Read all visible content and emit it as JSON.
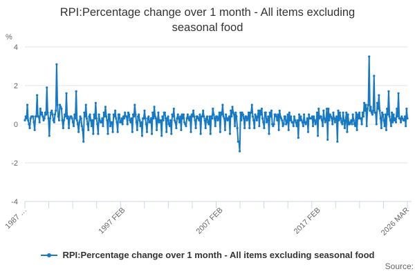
{
  "title": {
    "line1": "RPI:Percentage change over 1 month - All items excluding",
    "line2": "seasonal food"
  },
  "legend": {
    "label": "RPI:Percentage change over 1 month - All items excluding seasonal food"
  },
  "footer": {
    "source_label": "Source:"
  },
  "chart_data": {
    "type": "line",
    "title": "RPI:Percentage change over 1 month - All items excluding seasonal food",
    "ylabel": "%",
    "xlabel": "",
    "ylim": [
      -4,
      4
    ],
    "yticks": [
      4,
      2,
      0,
      -2,
      -4
    ],
    "grid": true,
    "legend_position": "bottom",
    "x_start": "1987 JAN",
    "x_end": "2026 MAR",
    "x_frequency": "monthly",
    "x_tick_labels": [
      {
        "label": "1987 …",
        "month_index": 0
      },
      {
        "label": "1997 FEB",
        "month_index": 121
      },
      {
        "label": "2007 FEB",
        "month_index": 241
      },
      {
        "label": "2017 FEB",
        "month_index": 361
      },
      {
        "label": "2026 MAR",
        "month_index": 470
      }
    ],
    "minor_x_tick_count": 17,
    "series": [
      {
        "name": "RPI:Percentage change over 1 month - All items excluding seasonal food",
        "color": "#1779c4",
        "values": [
          0.2,
          0.4,
          0.3,
          1.0,
          0.2,
          0.0,
          -0.2,
          0.3,
          0.4,
          0.4,
          0.4,
          0.1,
          -0.3,
          0.4,
          0.4,
          1.5,
          0.4,
          0.4,
          0.1,
          0.8,
          0.5,
          0.6,
          0.4,
          0.2,
          0.3,
          0.6,
          0.5,
          1.9,
          0.6,
          0.3,
          -0.6,
          0.3,
          0.6,
          0.7,
          0.5,
          0.2,
          0.1,
          0.5,
          0.7,
          3.1,
          1.0,
          0.4,
          0.2,
          1.0,
          0.9,
          0.8,
          0.2,
          -0.2,
          0.2,
          0.5,
          0.4,
          1.6,
          0.3,
          0.4,
          -0.2,
          0.3,
          0.4,
          0.4,
          0.3,
          0.1,
          -0.1,
          0.5,
          0.3,
          1.7,
          0.2,
          0.0,
          -0.4,
          0.1,
          0.4,
          0.3,
          -0.1,
          -0.3,
          -0.9,
          0.6,
          0.4,
          1.0,
          0.3,
          0.0,
          -0.3,
          0.4,
          0.5,
          0.2,
          -0.1,
          0.2,
          -0.5,
          0.5,
          0.3,
          1.1,
          0.3,
          0.0,
          -0.5,
          0.5,
          0.2,
          0.1,
          0.1,
          0.3,
          -0.1,
          0.6,
          0.4,
          0.9,
          0.4,
          0.2,
          -0.5,
          0.5,
          0.5,
          -0.1,
          0.1,
          0.1,
          -0.4,
          0.5,
          0.4,
          0.7,
          0.3,
          0.1,
          -0.4,
          0.5,
          0.5,
          0.1,
          0.1,
          0.3,
          0.0,
          0.4,
          0.3,
          0.6,
          0.4,
          0.4,
          0.0,
          0.6,
          0.5,
          0.2,
          0.1,
          0.3,
          -0.4,
          0.5,
          0.4,
          1.0,
          0.5,
          0.1,
          -0.3,
          0.4,
          0.5,
          0.2,
          -0.1,
          0.1,
          -0.6,
          0.3,
          0.3,
          0.7,
          0.3,
          0.0,
          -0.4,
          0.3,
          0.4,
          0.1,
          0.1,
          0.3,
          -0.5,
          0.6,
          0.3,
          0.9,
          0.4,
          0.3,
          -0.3,
          0.2,
          0.6,
          0.1,
          0.2,
          0.2,
          -0.6,
          0.4,
          0.2,
          0.6,
          0.6,
          0.3,
          -0.4,
          0.3,
          0.4,
          0.0,
          -0.1,
          0.2,
          -0.5,
          0.5,
          0.4,
          0.8,
          0.2,
          0.1,
          -0.2,
          0.3,
          0.5,
          0.3,
          0.1,
          0.4,
          -0.3,
          0.5,
          0.3,
          0.5,
          0.1,
          0.0,
          -0.1,
          0.3,
          0.5,
          0.3,
          0.2,
          0.4,
          -0.4,
          0.5,
          0.4,
          0.7,
          0.4,
          0.2,
          -0.2,
          0.4,
          0.4,
          0.3,
          0.2,
          0.5,
          -0.5,
          0.4,
          0.4,
          0.7,
          0.4,
          0.2,
          -0.2,
          0.3,
          0.4,
          0.1,
          0.0,
          0.4,
          -0.5,
          0.4,
          0.3,
          0.8,
          0.5,
          0.3,
          -0.1,
          0.4,
          0.4,
          0.2,
          0.3,
          0.6,
          -0.4,
          0.6,
          0.5,
          1.0,
          0.4,
          0.3,
          -0.3,
          0.5,
          0.3,
          0.2,
          0.3,
          0.4,
          -0.5,
          0.7,
          0.4,
          0.9,
          0.6,
          0.5,
          -0.1,
          0.6,
          0.4,
          -0.2,
          -0.9,
          -0.9,
          -1.4,
          0.6,
          0.2,
          0.6,
          0.5,
          0.3,
          -0.2,
          0.4,
          0.4,
          0.2,
          0.3,
          0.6,
          -0.2,
          0.6,
          0.6,
          1.0,
          0.4,
          0.2,
          -0.2,
          0.5,
          0.4,
          0.2,
          0.4,
          0.7,
          -0.1,
          0.7,
          0.5,
          0.8,
          0.3,
          0.1,
          -0.2,
          0.6,
          0.6,
          0.1,
          0.2,
          0.4,
          -0.5,
          0.6,
          0.4,
          0.7,
          0.0,
          -0.1,
          0.0,
          0.5,
          0.5,
          0.4,
          0.2,
          0.5,
          -0.3,
          0.7,
          0.4,
          0.3,
          0.2,
          -0.1,
          0.0,
          0.4,
          0.4,
          0.0,
          0.1,
          0.5,
          -0.3,
          0.6,
          0.2,
          0.4,
          0.1,
          0.1,
          -0.1,
          0.4,
          0.2,
          0.1,
          -0.1,
          0.2,
          -0.7,
          0.5,
          0.2,
          0.4,
          0.2,
          0.1,
          -0.1,
          0.5,
          0.1,
          0.0,
          0.1,
          0.3,
          -0.4,
          0.5,
          0.3,
          0.3,
          0.3,
          0.4,
          -0.1,
          0.4,
          0.2,
          0.0,
          0.1,
          0.6,
          -0.6,
          0.8,
          0.3,
          0.4,
          0.4,
          0.2,
          -0.1,
          0.7,
          0.3,
          0.1,
          0.2,
          0.8,
          -0.8,
          0.8,
          0.2,
          0.5,
          0.4,
          0.3,
          0.0,
          0.6,
          0.3,
          0.1,
          0.3,
          0.4,
          -0.9,
          0.7,
          0.2,
          0.6,
          0.3,
          0.1,
          0.0,
          0.6,
          0.2,
          -0.2,
          0.2,
          0.6,
          -0.4,
          0.5,
          0.0,
          0.0,
          0.1,
          0.2,
          0.0,
          0.5,
          0.2,
          0.0,
          -0.1,
          0.6,
          -0.3,
          0.5,
          0.3,
          0.6,
          0.3,
          0.3,
          0.0,
          0.6,
          0.4,
          1.1,
          0.7,
          1.0,
          -0.1,
          0.8,
          1.0,
          3.5,
          0.7,
          0.9,
          0.6,
          0.5,
          0.7,
          2.5,
          0.6,
          0.6,
          0.0,
          1.1,
          0.8,
          1.5,
          0.7,
          0.3,
          -0.2,
          0.6,
          0.5,
          0.2,
          -0.1,
          0.5,
          -0.3,
          0.8,
          0.5,
          1.7,
          0.4,
          0.2,
          -0.1,
          0.6,
          0.1,
          0.5,
          0.2,
          0.3,
          0.1,
          0.8,
          0.4,
          1.6,
          0.3,
          0.3,
          0.1,
          0.4,
          0.3,
          0.2,
          0.2,
          0.4,
          -0.1,
          0.8,
          0.3
        ]
      }
    ],
    "colors": {
      "line": "#1779c4",
      "gridline": "#e6e6e6",
      "axis_line": "#ccd6eb",
      "tick_label": "#666666",
      "title_text": "#333333"
    }
  }
}
